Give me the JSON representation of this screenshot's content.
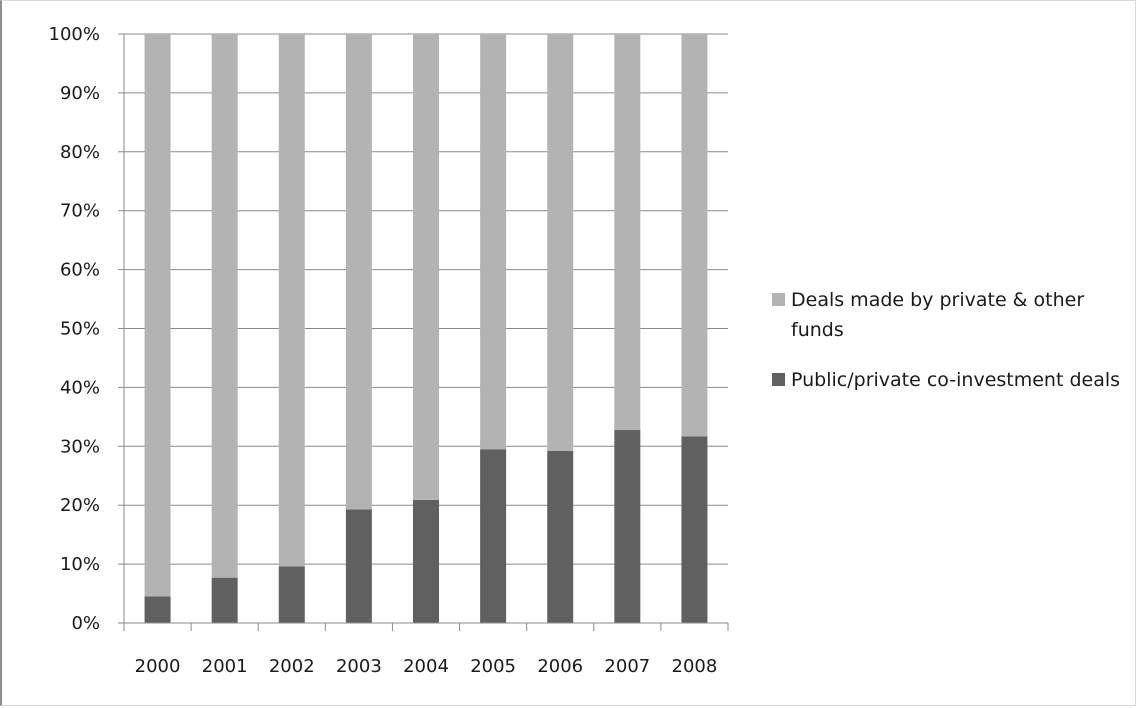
{
  "chart_data": {
    "type": "bar",
    "stacked": true,
    "percent": true,
    "categories": [
      "2000",
      "2001",
      "2002",
      "2003",
      "2004",
      "2005",
      "2006",
      "2007",
      "2008"
    ],
    "series": [
      {
        "name": "Public/private co-investment deals",
        "color": "#606060",
        "values": [
          4.5,
          7.7,
          9.6,
          19.3,
          20.9,
          29.5,
          29.2,
          32.8,
          31.7
        ]
      },
      {
        "name": "Deals made by private & other funds",
        "color": "#b3b3b3",
        "values": [
          95.5,
          92.3,
          90.4,
          80.7,
          79.1,
          70.5,
          70.8,
          67.2,
          68.3
        ]
      }
    ],
    "ylim": [
      0,
      100
    ],
    "yticks": [
      "0%",
      "10%",
      "20%",
      "30%",
      "40%",
      "50%",
      "60%",
      "70%",
      "80%",
      "90%",
      "100%"
    ],
    "grid": true,
    "legend_position": "right",
    "legend": [
      {
        "label": "Deals made by private & other funds",
        "color": "#b3b3b3"
      },
      {
        "label": "Public/private co-investment deals",
        "color": "#606060"
      }
    ],
    "title": "",
    "xlabel": "",
    "ylabel": ""
  }
}
